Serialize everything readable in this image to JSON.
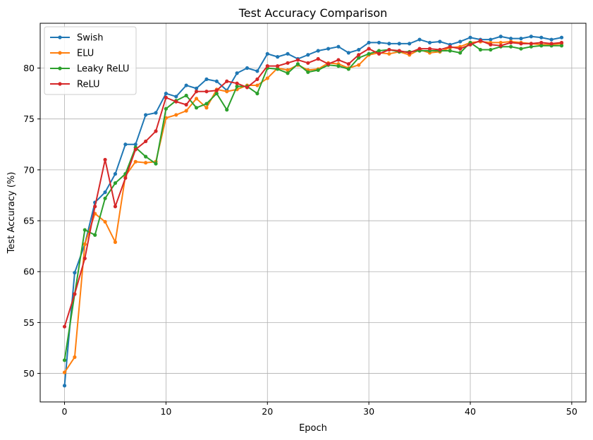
{
  "chart_data": {
    "type": "line",
    "title": "Test Accuracy Comparison",
    "xlabel": "Epoch",
    "ylabel": "Test Accuracy (%)",
    "xlim": [
      -2.4,
      51.4
    ],
    "ylim": [
      47.2,
      84.4
    ],
    "xticks": [
      0,
      10,
      20,
      30,
      40,
      50
    ],
    "yticks": [
      50,
      55,
      60,
      65,
      70,
      75,
      80
    ],
    "grid": true,
    "legend_position": "top-left",
    "x": [
      0,
      1,
      2,
      3,
      4,
      5,
      6,
      7,
      8,
      9,
      10,
      11,
      12,
      13,
      14,
      15,
      16,
      17,
      18,
      19,
      20,
      21,
      22,
      23,
      24,
      25,
      26,
      27,
      28,
      29,
      30,
      31,
      32,
      33,
      34,
      35,
      36,
      37,
      38,
      39,
      40,
      41,
      42,
      43,
      44,
      45,
      46,
      47,
      48,
      49
    ],
    "series": [
      {
        "name": "Swish",
        "color": "#1f77b4",
        "values": [
          48.8,
          59.9,
          62.7,
          66.8,
          67.8,
          69.6,
          72.5,
          72.5,
          75.4,
          75.6,
          77.5,
          77.2,
          78.3,
          78.0,
          78.9,
          78.7,
          77.8,
          79.5,
          80.0,
          79.7,
          81.4,
          81.1,
          81.4,
          80.9,
          81.3,
          81.7,
          81.9,
          82.1,
          81.5,
          81.8,
          82.5,
          82.5,
          82.4,
          82.4,
          82.4,
          82.8,
          82.5,
          82.6,
          82.3,
          82.6,
          83.0,
          82.8,
          82.8,
          83.1,
          82.9,
          82.9,
          83.1,
          83.0,
          82.8,
          83.0
        ]
      },
      {
        "name": "ELU",
        "color": "#ff7f0e",
        "values": [
          50.1,
          51.6,
          62.7,
          65.7,
          64.9,
          62.9,
          69.4,
          70.8,
          70.7,
          70.8,
          75.1,
          75.4,
          75.8,
          77.0,
          76.1,
          77.9,
          77.7,
          77.9,
          78.3,
          78.3,
          79.0,
          80.0,
          79.8,
          80.3,
          79.8,
          79.9,
          80.5,
          80.4,
          80.0,
          80.3,
          81.3,
          81.5,
          81.4,
          81.6,
          81.3,
          81.8,
          81.5,
          81.6,
          82.0,
          82.1,
          82.5,
          82.6,
          82.5,
          82.5,
          82.6,
          82.5,
          82.4,
          82.3,
          82.3,
          82.4
        ]
      },
      {
        "name": "Leaky ReLU",
        "color": "#2ca02c",
        "values": [
          51.3,
          57.8,
          64.1,
          63.6,
          67.2,
          68.7,
          69.6,
          72.2,
          71.3,
          70.6,
          76.0,
          76.8,
          77.3,
          76.1,
          76.5,
          77.5,
          75.9,
          78.2,
          78.2,
          77.5,
          80.0,
          79.9,
          79.5,
          80.4,
          79.6,
          79.8,
          80.3,
          80.2,
          79.9,
          81.0,
          81.4,
          81.7,
          81.8,
          81.6,
          81.6,
          81.7,
          81.7,
          81.7,
          81.7,
          81.5,
          82.5,
          81.8,
          81.8,
          82.1,
          82.1,
          81.9,
          82.1,
          82.2,
          82.2,
          82.2
        ]
      },
      {
        "name": "ReLU",
        "color": "#d62728",
        "values": [
          54.6,
          57.8,
          61.3,
          66.4,
          71.0,
          66.4,
          69.2,
          72.0,
          72.8,
          73.8,
          77.1,
          76.7,
          76.4,
          77.7,
          77.7,
          77.8,
          78.7,
          78.5,
          78.1,
          78.9,
          80.2,
          80.2,
          80.5,
          80.8,
          80.5,
          80.9,
          80.4,
          80.8,
          80.4,
          81.3,
          81.9,
          81.4,
          81.8,
          81.7,
          81.5,
          81.9,
          81.9,
          81.8,
          82.1,
          81.9,
          82.3,
          82.7,
          82.3,
          82.2,
          82.5,
          82.4,
          82.4,
          82.5,
          82.4,
          82.5
        ]
      }
    ]
  }
}
